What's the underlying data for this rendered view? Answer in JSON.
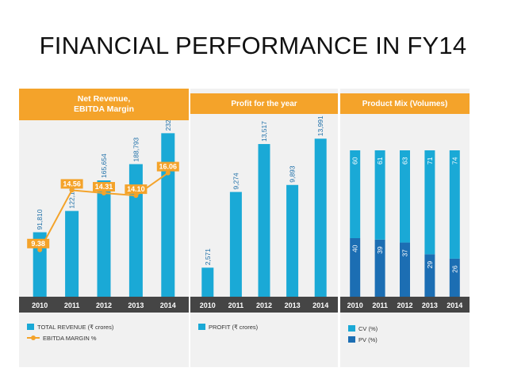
{
  "title": "FINANCIAL PERFORMANCE IN FY14",
  "colors": {
    "accent": "#f4a32a",
    "bar": "#1aa9d6",
    "bar_dark": "#1c6eb3",
    "axis_band": "#454545",
    "panel_bg": "#f1f1f1"
  },
  "chart_data": [
    {
      "type": "bar",
      "title": "Net Revenue, EBITDA Margin",
      "title_lines": [
        "Net Revenue,",
        "EBITDA Margin"
      ],
      "categories": [
        "2010",
        "2011",
        "2012",
        "2013",
        "2014"
      ],
      "series": [
        {
          "name": "TOTAL REVENUE (₹ crores)",
          "type": "bar",
          "values": [
            91810,
            122128,
            165654,
            188793,
            232834
          ],
          "labels": [
            "91,810",
            "122,128",
            "165,654",
            "188,793",
            "232,834"
          ]
        },
        {
          "name": "EBITDA MARGIN %",
          "type": "line",
          "values": [
            9.38,
            14.56,
            14.31,
            14.1,
            16.06
          ],
          "labels": [
            "9.38",
            "14.56",
            "14.31",
            "14.10",
            "16.06"
          ]
        }
      ],
      "ylim": [
        0,
        240000
      ],
      "ylim_line": [
        0,
        18
      ],
      "legend": [
        "TOTAL REVENUE (₹ crores)",
        "EBITDA MARGIN %"
      ]
    },
    {
      "type": "bar",
      "title": "Profit for the year",
      "categories": [
        "2010",
        "2011",
        "2012",
        "2013",
        "2014"
      ],
      "series": [
        {
          "name": "PROFIT (₹ crores)",
          "values": [
            2571,
            9274,
            13517,
            9893,
            13991
          ],
          "labels": [
            "2,571",
            "9,274",
            "13,517",
            "9,893",
            "13,991"
          ]
        }
      ],
      "ylim": [
        0,
        14500
      ],
      "legend": [
        "PROFIT (₹ crores)"
      ]
    },
    {
      "type": "bar",
      "stacked": true,
      "title": "Product Mix (Volumes)",
      "categories": [
        "2010",
        "2011",
        "2012",
        "2013",
        "2014"
      ],
      "series": [
        {
          "name": "PV (%)",
          "values": [
            40,
            39,
            37,
            29,
            26
          ],
          "labels": [
            "40",
            "39",
            "37",
            "29",
            "26"
          ]
        },
        {
          "name": "CV (%)",
          "values": [
            60,
            61,
            63,
            71,
            74
          ],
          "labels": [
            "60",
            "61",
            "63",
            "71",
            "74"
          ]
        }
      ],
      "ylim": [
        0,
        100
      ],
      "legend": [
        "CV (%)",
        "PV (%)"
      ]
    }
  ]
}
